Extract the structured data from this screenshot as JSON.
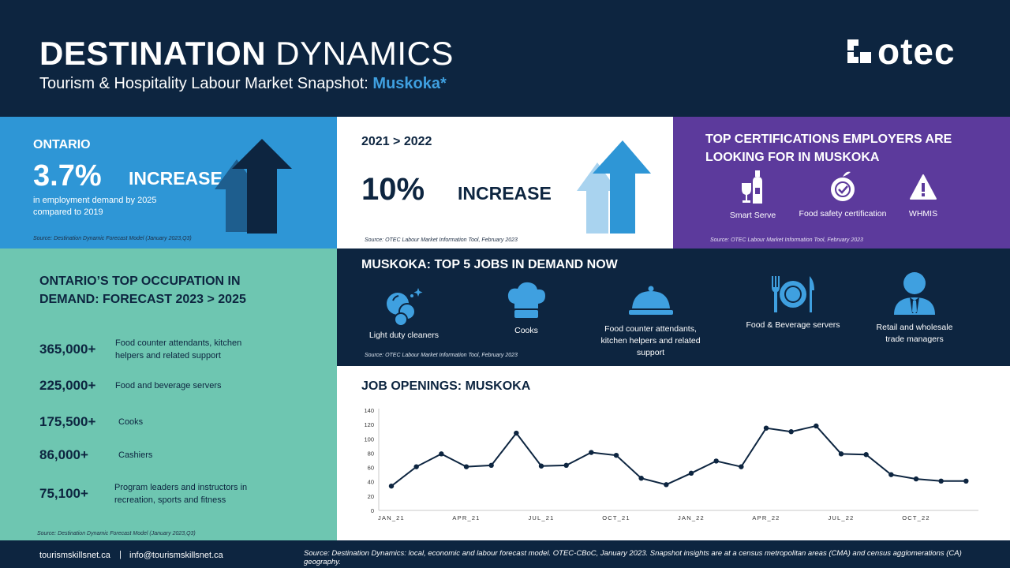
{
  "header": {
    "title_bold": "DESTINATION",
    "title_light": "DYNAMICS",
    "subtitle_prefix": "Tourism & Hospitality Labour Market Snapshot: ",
    "subtitle_highlight": "Muskoka*",
    "logo": "OTEC"
  },
  "ontario": {
    "heading": "ONTARIO",
    "percent": "3.7%",
    "increase": "INCREASE",
    "desc": "in employment demand by 2025 compared to 2019",
    "source": "Source: Destination Dynamic Forecast Model (January 2023,Q3)"
  },
  "growth": {
    "period": "2021 > 2022",
    "percent": "10%",
    "increase": "INCREASE",
    "source": "Source: OTEC Labour Market Information Tool, February 2023"
  },
  "certifications": {
    "heading": "TOP CERTIFICATIONS EMPLOYERS ARE LOOKING FOR IN MUSKOKA",
    "items": [
      {
        "label": "Smart Serve",
        "icon": "bottle-glass-icon"
      },
      {
        "label": "Food safety  certification",
        "icon": "apple-check-icon"
      },
      {
        "label": "WHMIS",
        "icon": "warning-icon"
      }
    ],
    "source": "Source: OTEC Labour Market Information Tool, February 2023"
  },
  "occupations": {
    "heading": "ONTARIO’S TOP OCCUPATION IN DEMAND: FORECAST 2023 > 2025",
    "rows": [
      {
        "number": "365,000+",
        "label": "Food counter attendants,  kitchen helpers and related support"
      },
      {
        "number": "225,000+",
        "label": "Food and beverage servers"
      },
      {
        "number": "175,500+",
        "label": "Cooks"
      },
      {
        "number": "86,000+",
        "label": "Cashiers"
      },
      {
        "number": "75,100+",
        "label": "Program leaders and instructors  in recreation, sports and fitness"
      }
    ],
    "source": "Source: Destination Dynamic Forecast Model (January 2023,Q3)"
  },
  "top_jobs": {
    "heading": "MUSKOKA: TOP 5 JOBS IN DEMAND NOW",
    "items": [
      {
        "label": "Light duty cleaners",
        "icon": "cleaning-bubbles-icon"
      },
      {
        "label": "Cooks",
        "icon": "chef-hat-icon"
      },
      {
        "label": "Food counter attendants, kitchen helpers and related support",
        "icon": "cloche-icon"
      },
      {
        "label": "Food & Beverage servers",
        "icon": "plate-cutlery-icon"
      },
      {
        "label": "Retail and wholesale trade managers",
        "icon": "manager-icon"
      }
    ],
    "source": "Source: OTEC Labour Market Information Tool, February 2023"
  },
  "chart_data": {
    "type": "line",
    "title": "JOB OPENINGS: MUSKOKA",
    "x": [
      "JAN_21",
      "FEB_21",
      "MAR_21",
      "APR_21",
      "MAY_21",
      "JUN_21",
      "JUL_21",
      "AUG_21",
      "SEP_21",
      "OCT_21",
      "NOV_21",
      "DEC_21",
      "JAN_22",
      "FEB_22",
      "MAR_22",
      "APR_22",
      "MAY_22",
      "JUN_22",
      "JUL_22",
      "AUG_22",
      "SEP_22",
      "OCT_22",
      "NOV_22",
      "DEC_22"
    ],
    "x_tick_labels": [
      "JAN_21",
      "APR_21",
      "JUL_21",
      "OCT_21",
      "JAN_22",
      "APR_22",
      "JUL_22",
      "OCT_22"
    ],
    "values": [
      34,
      61,
      79,
      61,
      63,
      108,
      62,
      63,
      81,
      77,
      45,
      36,
      52,
      69,
      61,
      115,
      110,
      118,
      79,
      78,
      50,
      44,
      41,
      41
    ],
    "ylim": [
      0,
      140
    ],
    "yticks": [
      0,
      20,
      40,
      60,
      80,
      100,
      120,
      140
    ],
    "grid": false,
    "color": "#0d2540"
  },
  "footer": {
    "website": "tourismskillsnet.ca",
    "separator": "|",
    "email": "info@tourismskillsnet.ca",
    "source": "Source: Destination Dynamics: local, economic and labour forecast model. OTEC-CBoC, January 2023. Snapshot insights are at a census metropolitan areas (CMA) and census agglomerations (CA) geography."
  },
  "colors": {
    "navy": "#0d2540",
    "blue": "#2e96d6",
    "purple": "#5c3a9c",
    "teal": "#6ec6b1",
    "accent": "#3fa0e0"
  }
}
